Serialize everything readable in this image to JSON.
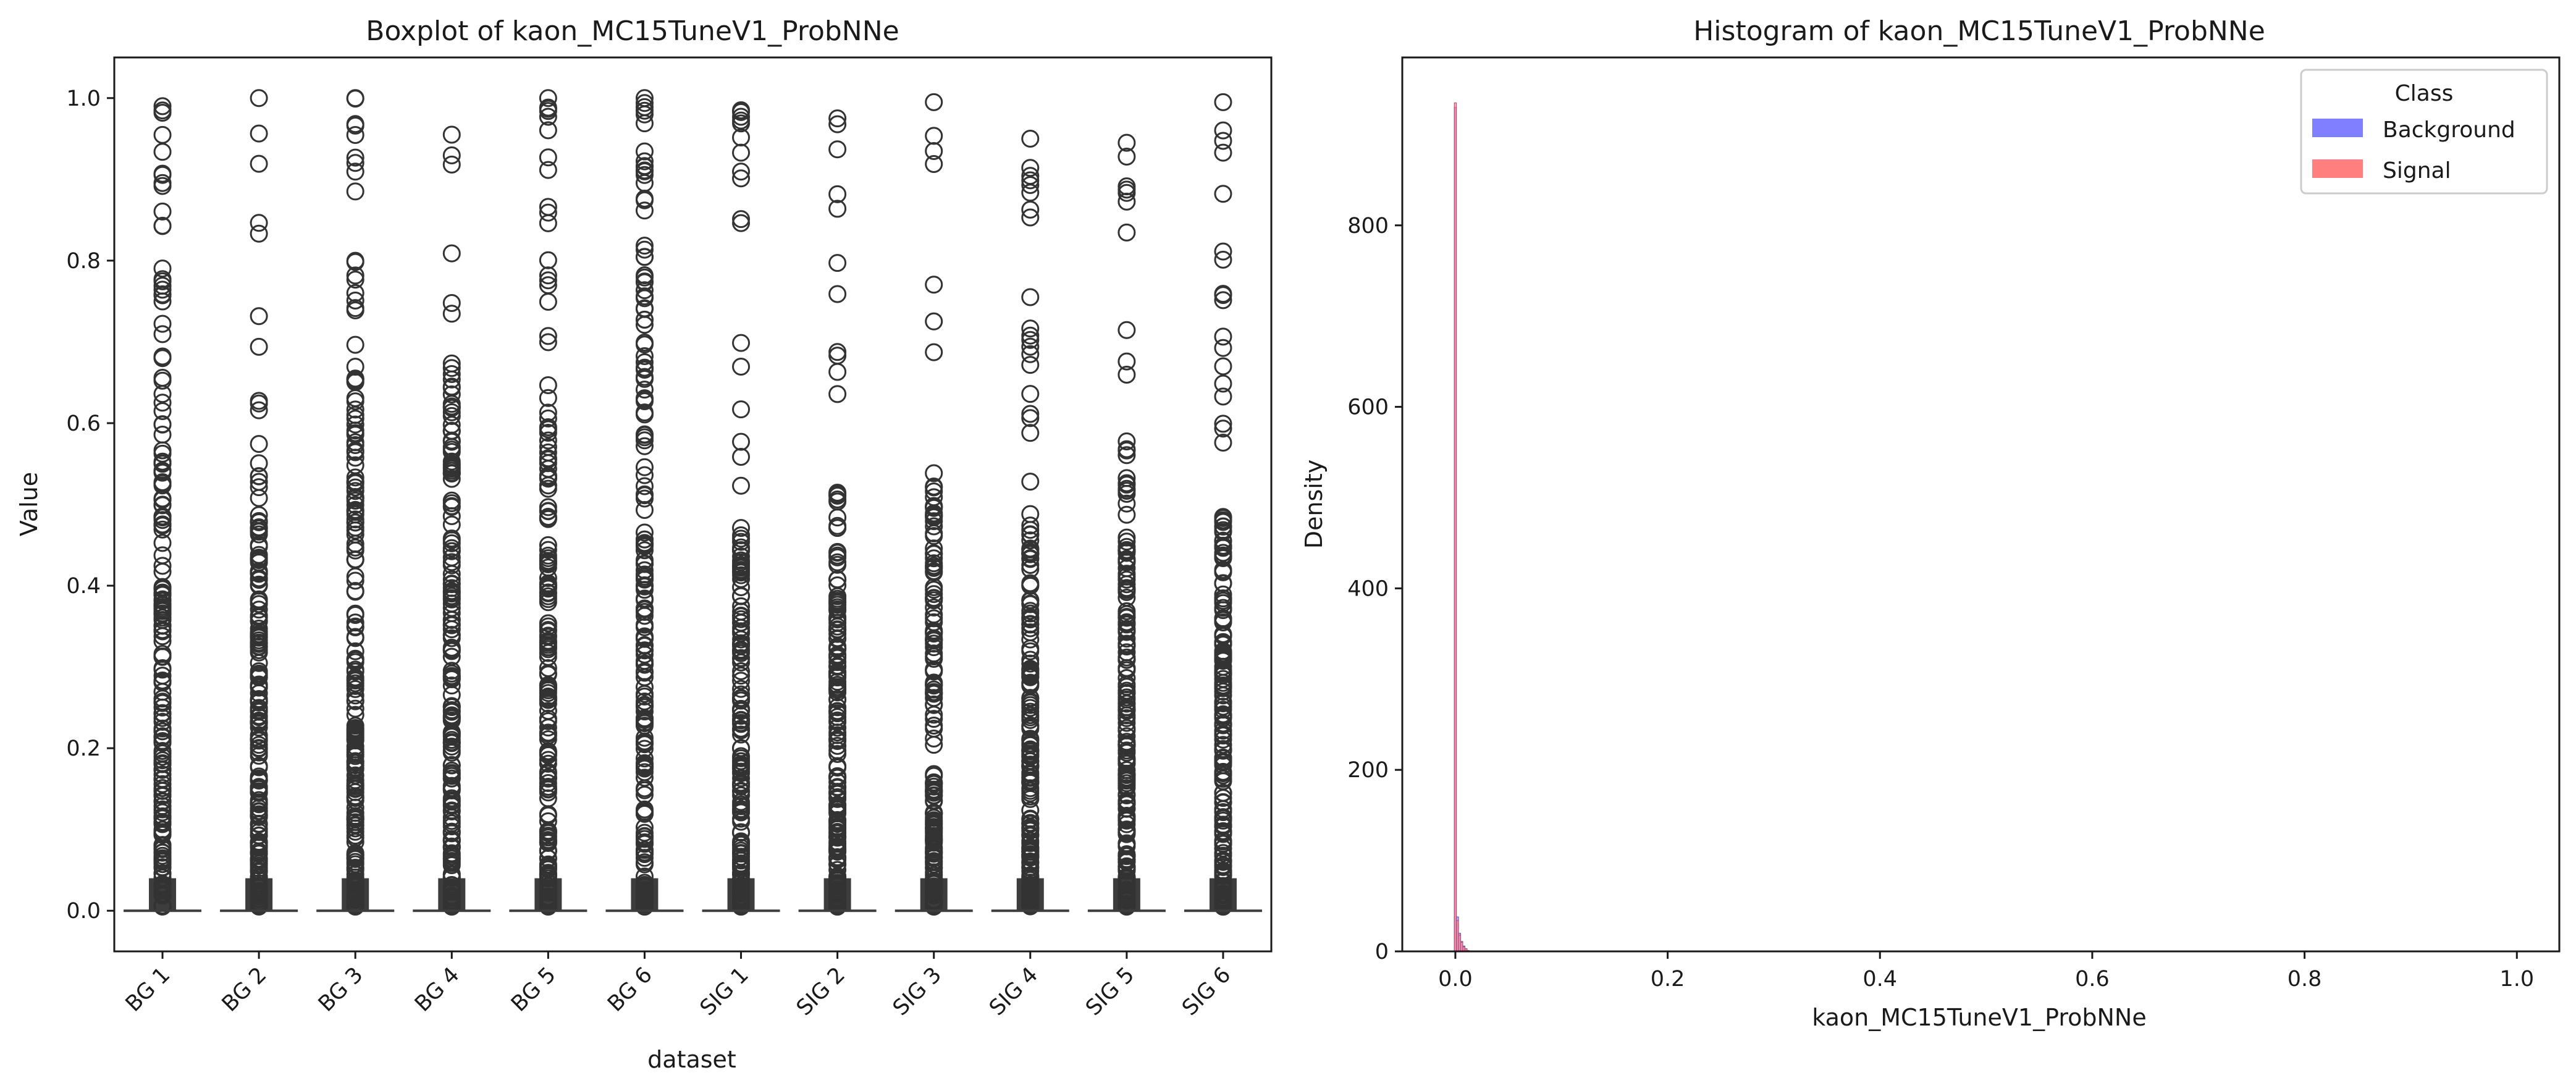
{
  "chart_data": [
    {
      "type": "box",
      "title": "Boxplot of kaon_MC15TuneV1_ProbNNe",
      "xlabel": "dataset",
      "ylabel": "Value",
      "ylim": [
        -0.05,
        1.05
      ],
      "yticks": [
        "0.0",
        "0.2",
        "0.4",
        "0.6",
        "0.8",
        "1.0"
      ],
      "categories": [
        "BG 1",
        "BG 2",
        "BG 3",
        "BG 4",
        "BG 5",
        "BG 6",
        "SIG 1",
        "SIG 2",
        "SIG 3",
        "SIG 4",
        "SIG 5",
        "SIG 6"
      ],
      "box_median": [
        0.0,
        0.0,
        0.0,
        0.0,
        0.0,
        0.0,
        0.0,
        0.0,
        0.0,
        0.0,
        0.0,
        0.0
      ],
      "outlier_max": [
        0.99,
        1.0,
        1.0,
        0.955,
        1.0,
        1.0,
        0.985,
        0.975,
        0.995,
        0.95,
        0.945,
        0.995
      ],
      "dense_outliers_up_to": [
        0.68,
        0.48,
        0.69,
        0.65,
        0.63,
        0.85,
        0.48,
        0.51,
        0.52,
        0.48,
        0.53,
        0.48
      ],
      "grid": false
    },
    {
      "type": "histogram",
      "title": "Histogram of kaon_MC15TuneV1_ProbNNe",
      "xlabel": "kaon_MC15TuneV1_ProbNNe",
      "ylabel": "Density",
      "xlim": [
        -0.05,
        1.04
      ],
      "ylim": [
        0,
        985
      ],
      "xticks": [
        "0.0",
        "0.2",
        "0.4",
        "0.6",
        "0.8",
        "1.0"
      ],
      "yticks": [
        "0",
        "200",
        "400",
        "600",
        "800"
      ],
      "series": [
        {
          "name": "Background",
          "color": "#7f7fff",
          "x": [
            0.0,
            0.002,
            0.004,
            0.006,
            0.008,
            0.01,
            0.012
          ],
          "density": [
            930,
            38,
            20,
            11,
            6,
            3,
            1
          ]
        },
        {
          "name": "Signal",
          "color": "#ff7f7f",
          "x": [
            0.0,
            0.002,
            0.004,
            0.006,
            0.008,
            0.01,
            0.012
          ],
          "density": [
            935,
            34,
            18,
            10,
            5,
            3,
            1
          ]
        }
      ],
      "legend": {
        "title": "Class",
        "position": "top-right"
      },
      "grid": false
    }
  ]
}
